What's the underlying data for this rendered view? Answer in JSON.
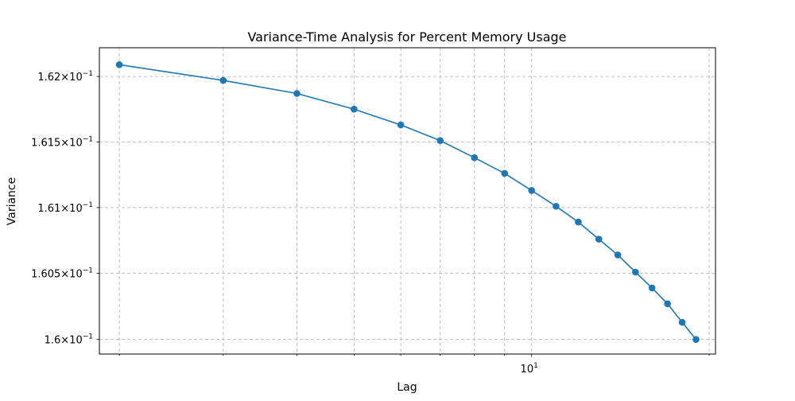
{
  "chart_data": {
    "type": "line",
    "title": "Variance-Time Analysis for Percent Memory Usage",
    "xlabel": "Lag",
    "ylabel": "Variance",
    "x_scale": "log",
    "y_scale": "log",
    "xlim": [
      1.85,
      20.5
    ],
    "ylim": [
      0.15989,
      0.16222
    ],
    "grid": true,
    "x_ticks": [
      {
        "value": 10,
        "label": "10",
        "exponent": "1"
      }
    ],
    "x_minor_ticks": [
      2,
      3,
      4,
      5,
      6,
      7,
      8,
      9,
      20
    ],
    "y_ticks": [
      {
        "value": 0.16,
        "mantissa": "1.6",
        "exponent": "−1"
      },
      {
        "value": 0.1605,
        "mantissa": "1.605",
        "exponent": "−1"
      },
      {
        "value": 0.161,
        "mantissa": "1.61",
        "exponent": "−1"
      },
      {
        "value": 0.1615,
        "mantissa": "1.615",
        "exponent": "−1"
      },
      {
        "value": 0.162,
        "mantissa": "1.62",
        "exponent": "−1"
      }
    ],
    "series": [
      {
        "color": "#1f77b4",
        "marker": "circle",
        "x": [
          2,
          3,
          4,
          5,
          6,
          7,
          8,
          9,
          10,
          11,
          12,
          13,
          14,
          15,
          16,
          17,
          18,
          19
        ],
        "y": [
          0.16209,
          0.16197,
          0.16187,
          0.16175,
          0.16163,
          0.16151,
          0.16138,
          0.16126,
          0.16113,
          0.16101,
          0.16089,
          0.16076,
          0.16064,
          0.16051,
          0.16039,
          0.16027,
          0.16013,
          0.16
        ]
      }
    ]
  }
}
